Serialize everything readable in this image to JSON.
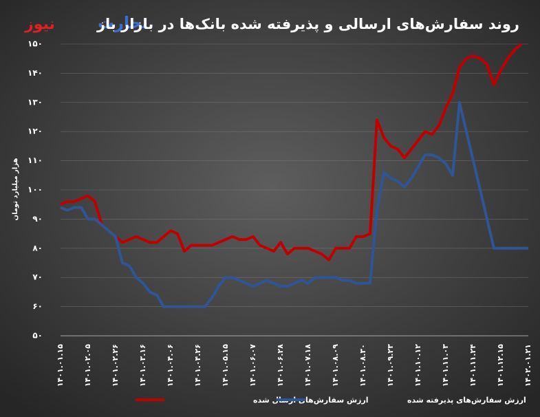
{
  "brand": [
    "تجارت",
    "نیوز"
  ],
  "chart_data": {
    "type": "line",
    "title": "روند سفارش‌های ارسالی و پذیرفته شده بانک‌ها در بازار باز",
    "y_label": "هزار میلیارد تومان",
    "categories": [
      "۱۴۰۱.۰۱.۱۵",
      null,
      null,
      null,
      "۱۴۰۱.۰۲.۰۵",
      null,
      null,
      null,
      "۱۴۰۱.۰۲.۲۶",
      null,
      null,
      null,
      "۱۴۰۱.۰۳.۱۶",
      null,
      null,
      null,
      "۱۴۰۱.۰۴.۰۶",
      null,
      null,
      null,
      "۱۴۰۱.۰۴.۲۶",
      null,
      null,
      null,
      "۱۴۰۱.۰۵.۱۵",
      null,
      null,
      null,
      "۱۴۰۱.۰۶.۰۷",
      null,
      null,
      null,
      "۱۴۰۱.۰۶.۲۸",
      null,
      null,
      null,
      "۱۴۰۱.۰۷.۱۸",
      null,
      null,
      null,
      "۱۴۰۱.۰۸.۰۹",
      null,
      null,
      null,
      "۱۴۰۱.۰۸.۳۰",
      null,
      null,
      null,
      "۱۴۰۱.۰۹.۲۳",
      null,
      null,
      null,
      "۱۴۰۱.۱۰.۱۲",
      null,
      null,
      null,
      "۱۴۰۱.۱۱.۰۳",
      null,
      null,
      null,
      "۱۴۰۱.۱۱.۲۴",
      null,
      null,
      null,
      "۱۴۰۱.۱۲.۱۵",
      null,
      null,
      null,
      "۱۴۰۲.۰۱.۲۱"
    ],
    "series": [
      {
        "name": "ارزش سفارش‌های ارسال شده",
        "color": "#c00000",
        "values": [
          95,
          96,
          96,
          97,
          98,
          96,
          88,
          86,
          84,
          82,
          83,
          84,
          83,
          82,
          82,
          84,
          86,
          85,
          79,
          81,
          81,
          81,
          81,
          82,
          83,
          84,
          83,
          83,
          84,
          81,
          80,
          79,
          82,
          78,
          80,
          80,
          80,
          79,
          78,
          76,
          80,
          80,
          80,
          84,
          84,
          85,
          124,
          118,
          115,
          114,
          111,
          114,
          117,
          120,
          119,
          122,
          128,
          133,
          142,
          145,
          146,
          145,
          143,
          136,
          141,
          145,
          148,
          150,
          null
        ]
      },
      {
        "name": "ارزش سفارش‌های پذیرفته شده",
        "color": "#2f5597",
        "values": [
          94,
          93,
          94,
          94,
          90,
          90,
          88,
          86,
          84,
          75,
          74,
          70,
          68,
          65,
          64,
          60,
          60,
          60,
          60,
          60,
          60,
          60,
          63,
          67,
          70,
          70,
          69,
          68,
          67,
          68,
          69,
          68,
          67,
          67,
          68,
          69,
          68,
          70,
          70,
          70,
          70,
          69,
          69,
          68,
          68,
          68,
          93,
          106,
          104,
          103,
          101,
          104,
          108,
          112,
          112,
          111,
          109,
          105,
          130,
          120,
          110,
          100,
          90,
          80,
          80,
          80,
          80,
          80,
          80
        ]
      }
    ],
    "ylim": [
      50,
      150
    ],
    "yticks": [
      {
        "value": 50,
        "label": "۵۰"
      },
      {
        "value": 60,
        "label": "۶۰"
      },
      {
        "value": 70,
        "label": "۷۰"
      },
      {
        "value": 80,
        "label": "۸۰"
      },
      {
        "value": 90,
        "label": "۹۰"
      },
      {
        "value": 100,
        "label": "۱۰۰"
      },
      {
        "value": 110,
        "label": "۱۱۰"
      },
      {
        "value": 120,
        "label": "۱۲۰"
      },
      {
        "value": 130,
        "label": "۱۳۰"
      },
      {
        "value": 140,
        "label": "۱۴۰"
      },
      {
        "value": 150,
        "label": "۱۵۰"
      }
    ],
    "grid": true,
    "legend": "bottom"
  }
}
